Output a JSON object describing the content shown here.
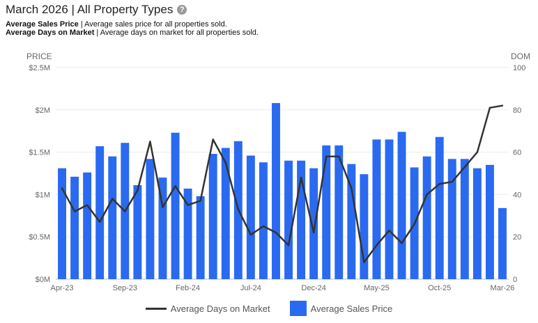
{
  "header": {
    "title": "March 2026 | All Property Types",
    "help_icon": "question-circle-icon"
  },
  "descriptions": [
    {
      "term": "Average Sales Price",
      "text": " | Average sales price for all properties sold."
    },
    {
      "term": "Average Days on Market",
      "text": " | Average days on market for all properties sold."
    }
  ],
  "legend": {
    "line_label": "Average Days on Market",
    "bar_label": "Average Sales Price"
  },
  "chart_data": {
    "type": "bar",
    "left_axis_title": "PRICE",
    "right_axis_title": "DOM",
    "left_ticks": [
      "$0M",
      "$0.5M",
      "$1M",
      "$1.5M",
      "$2M",
      "$2.5M"
    ],
    "right_ticks": [
      "0",
      "20",
      "40",
      "60",
      "80",
      "100"
    ],
    "ylim_left": [
      0,
      2.5
    ],
    "ylim_right": [
      0,
      100
    ],
    "x_tick_labels": [
      {
        "index": 0,
        "label": "Apr-23"
      },
      {
        "index": 5,
        "label": "Sep-23"
      },
      {
        "index": 10,
        "label": "Feb-24"
      },
      {
        "index": 15,
        "label": "Jul-24"
      },
      {
        "index": 20,
        "label": "Dec-24"
      },
      {
        "index": 25,
        "label": "May-25"
      },
      {
        "index": 30,
        "label": "Oct-25"
      },
      {
        "index": 35,
        "label": "Mar-26"
      }
    ],
    "categories": [
      "Apr-23",
      "May-23",
      "Jun-23",
      "Jul-23",
      "Aug-23",
      "Sep-23",
      "Oct-23",
      "Nov-23",
      "Dec-23",
      "Jan-24",
      "Feb-24",
      "Mar-24",
      "Apr-24",
      "May-24",
      "Jun-24",
      "Jul-24",
      "Aug-24",
      "Sep-24",
      "Oct-24",
      "Nov-24",
      "Dec-24",
      "Jan-25",
      "Feb-25",
      "Mar-25",
      "Apr-25",
      "May-25",
      "Jun-25",
      "Jul-25",
      "Aug-25",
      "Sep-25",
      "Oct-25",
      "Nov-25",
      "Dec-25",
      "Jan-26",
      "Feb-26",
      "Mar-26"
    ],
    "series": [
      {
        "name": "Average Sales Price",
        "type": "bar",
        "axis": "left",
        "color": "#2a6af0",
        "values": [
          1.31,
          1.21,
          1.26,
          1.57,
          1.45,
          1.61,
          1.11,
          1.42,
          1.2,
          1.73,
          1.07,
          0.98,
          1.48,
          1.55,
          1.63,
          1.46,
          1.38,
          2.08,
          1.4,
          1.4,
          1.31,
          1.58,
          1.58,
          1.36,
          1.24,
          1.65,
          1.65,
          1.74,
          1.32,
          1.45,
          1.68,
          1.42,
          1.42,
          1.31,
          1.35,
          0.84
        ]
      },
      {
        "name": "Average Days on Market",
        "type": "line",
        "axis": "right",
        "color": "#333333",
        "values": [
          43,
          32,
          35,
          27,
          38,
          32,
          42,
          65,
          34,
          44,
          35,
          37,
          66,
          55,
          33,
          21,
          25,
          22,
          16,
          48,
          22,
          58,
          58,
          43,
          8,
          16,
          23,
          17,
          26,
          40,
          45,
          46,
          53,
          60,
          81,
          82
        ]
      }
    ]
  }
}
